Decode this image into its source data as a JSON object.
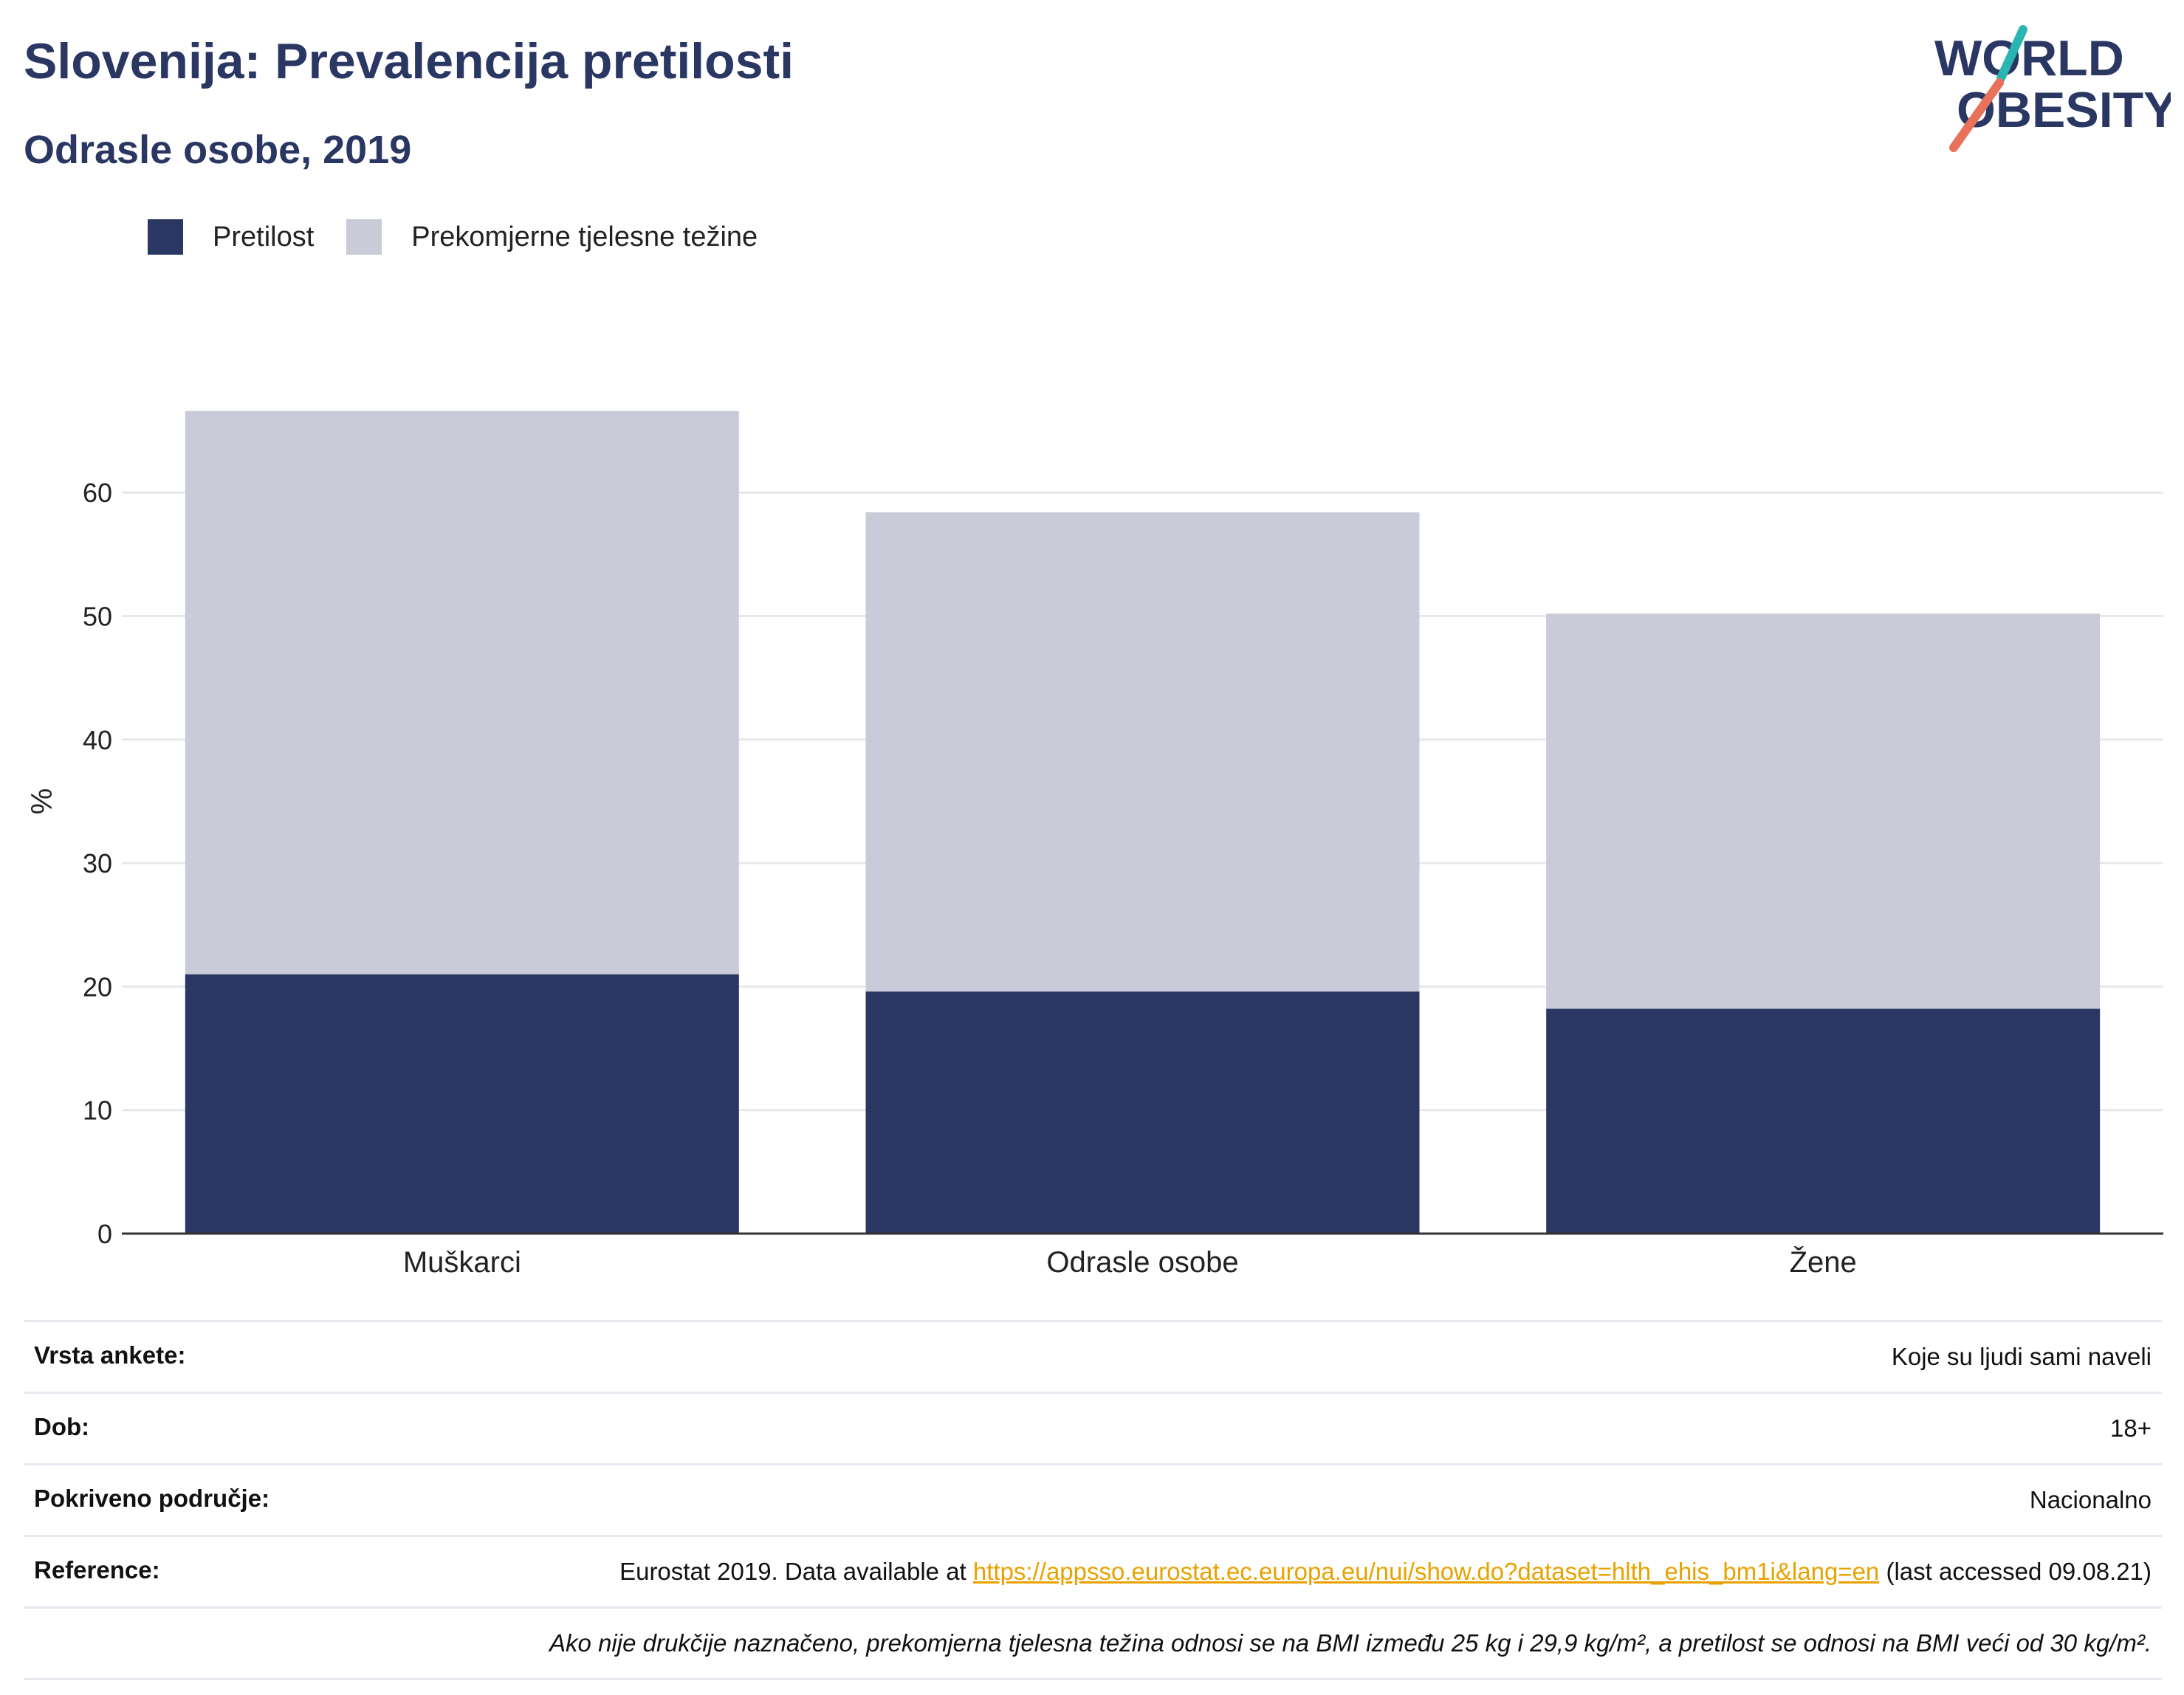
{
  "header": {
    "title": "Slovenija: Prevalencija pretilosti",
    "subtitle": "Odrasle osobe, 2019"
  },
  "logo": {
    "line1": "WORLD",
    "line2": "OBESITY",
    "icon": "world-obesity-logo"
  },
  "colors": {
    "obesity": "#2a3763",
    "overweight": "#c9ccd8",
    "accent_teal": "#2ab5b2",
    "accent_coral": "#e8715a",
    "link": "#e8a200"
  },
  "chart_data": {
    "type": "bar",
    "stacked": true,
    "title": "Slovenija: Prevalencija pretilosti",
    "subtitle": "Odrasle osobe, 2019",
    "ylabel": "%",
    "xlabel": "",
    "ylim": [
      0,
      70
    ],
    "yticks": [
      0,
      10,
      20,
      30,
      40,
      50,
      60
    ],
    "grid": true,
    "legend_position": "top-left",
    "categories": [
      "Muškarci",
      "Odrasle osobe",
      "Žene"
    ],
    "series": [
      {
        "name": "Pretilost",
        "color": "#2a3763",
        "values": [
          21.0,
          19.6,
          18.2
        ]
      },
      {
        "name": "Prekomjerne tjelesne težine",
        "color": "#c9ccd8",
        "values": [
          45.6,
          38.8,
          32.0
        ]
      }
    ]
  },
  "info": {
    "rows": [
      {
        "key": "Vrsta ankete:",
        "value": "Koje su ljudi sami naveli"
      },
      {
        "key": "Dob:",
        "value": "18+"
      },
      {
        "key": "Pokriveno područje:",
        "value": "Nacionalno"
      }
    ],
    "reference": {
      "key": "Reference:",
      "prefix": "Eurostat 2019. Data available at ",
      "link": "https://appsso.eurostat.ec.europa.eu/nui/show.do?dataset=hlth_ehis_bm1i&lang=en",
      "suffix": " (last accessed 09.08.21)"
    },
    "note": "Ako nije drukčije naznačeno, prekomjerna tjelesna težina odnosi se na BMI između 25 kg i 29,9 kg/m², a pretilost se odnosi na BMI veći od 30 kg/m²."
  }
}
